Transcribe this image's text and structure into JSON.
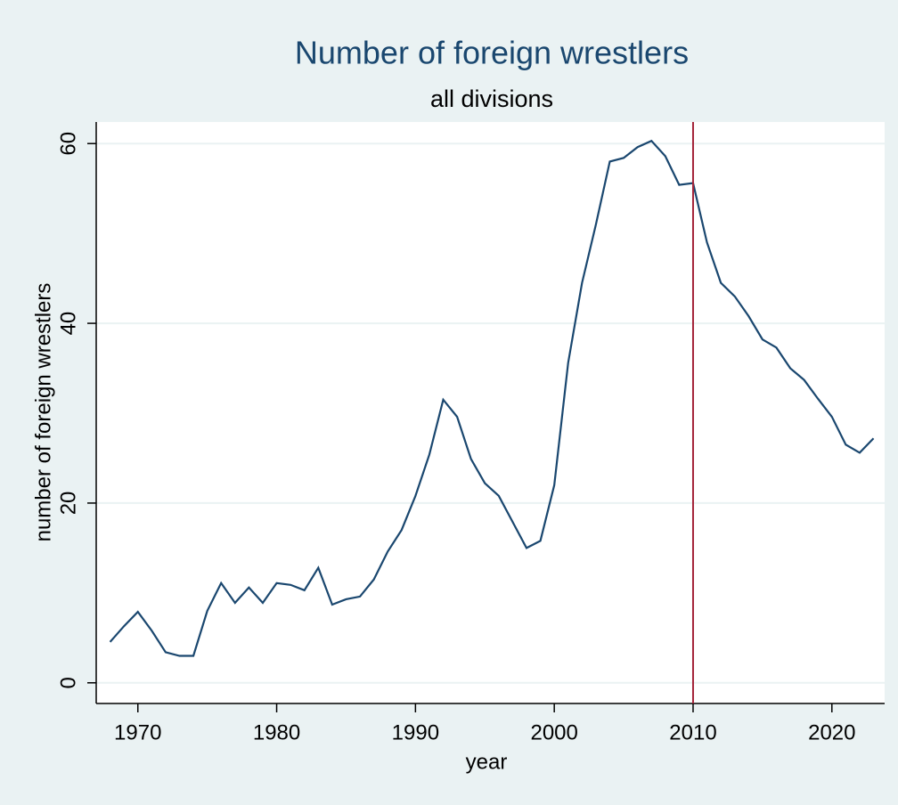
{
  "chart_data": {
    "type": "line",
    "title": "Number of foreign wrestlers",
    "subtitle": "all divisions",
    "x_label": "year",
    "y_label": "number of foreign wrestlers",
    "x": [
      1968,
      1969,
      1970,
      1971,
      1972,
      1973,
      1974,
      1975,
      1976,
      1977,
      1978,
      1979,
      1980,
      1981,
      1982,
      1983,
      1984,
      1985,
      1986,
      1987,
      1988,
      1989,
      1990,
      1991,
      1992,
      1993,
      1994,
      1995,
      1996,
      1997,
      1998,
      1999,
      2000,
      2001,
      2002,
      2003,
      2004,
      2005,
      2006,
      2007,
      2008,
      2009,
      2010,
      2011,
      2012,
      2013,
      2014,
      2015,
      2016,
      2017,
      2018,
      2019,
      2020,
      2021,
      2022,
      2023
    ],
    "series": [
      {
        "color": "#1a476f",
        "values": [
          4.55,
          6.3,
          7.9,
          5.8,
          3.4,
          3.0,
          3.0,
          8.0,
          11.1,
          8.9,
          10.6,
          8.9,
          11.1,
          10.9,
          10.3,
          12.8,
          8.7,
          9.3,
          9.6,
          11.5,
          14.6,
          17.0,
          20.8,
          25.4,
          31.5,
          29.6,
          24.9,
          22.2,
          20.8,
          17.9,
          15.0,
          15.8,
          22.0,
          35.6,
          44.5,
          51.0,
          58.0,
          58.4,
          59.6,
          60.3,
          58.6,
          55.4,
          55.6,
          49.0,
          44.5,
          43.0,
          40.8,
          38.2,
          37.3,
          35.0,
          33.7,
          31.6,
          29.6,
          26.5,
          25.6,
          27.2
        ]
      }
    ],
    "xline": 2010,
    "xline_color": "#a4253a",
    "xlim": [
      1967,
      2023.8
    ],
    "ylim": [
      -2.3,
      62.4
    ],
    "xticks": [
      1970,
      1980,
      1990,
      2000,
      2010,
      2020
    ],
    "yticks": [
      0,
      20,
      40,
      60
    ],
    "grid": true
  }
}
